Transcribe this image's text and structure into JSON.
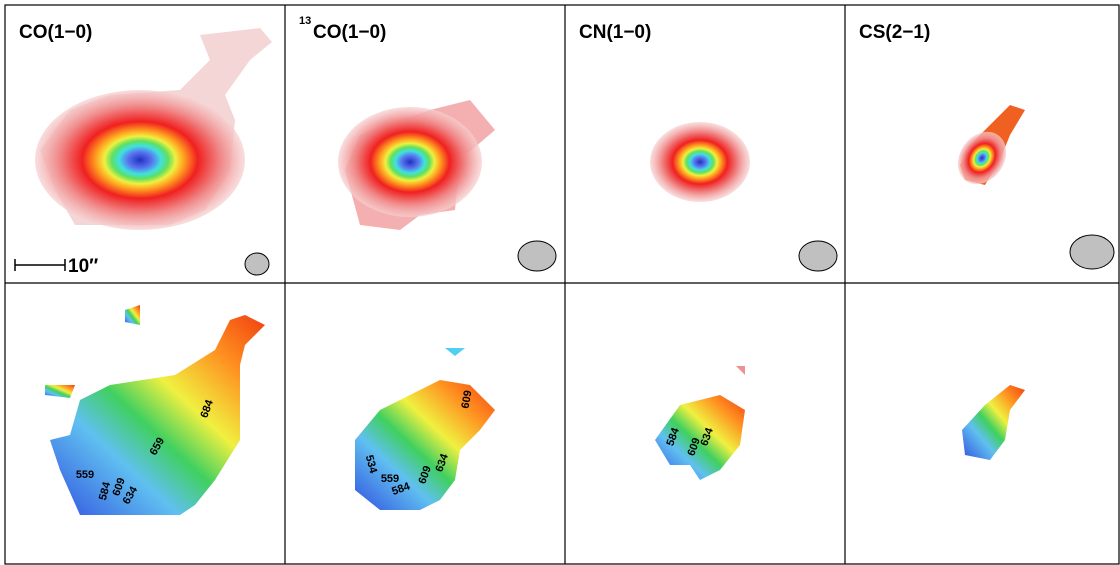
{
  "panels": [
    {
      "title": "CO(1−0)",
      "scale_label": "10″",
      "contour_labels": [
        559,
        584,
        609,
        634,
        659,
        684
      ]
    },
    {
      "title_sup": "13",
      "title": "CO(1−0)",
      "contour_labels": [
        534,
        559,
        584,
        609,
        634,
        609
      ]
    },
    {
      "title": "CN(1−0)",
      "contour_labels": [
        584,
        609,
        634
      ]
    },
    {
      "title": "CS(2−1)",
      "contour_labels": []
    }
  ]
}
